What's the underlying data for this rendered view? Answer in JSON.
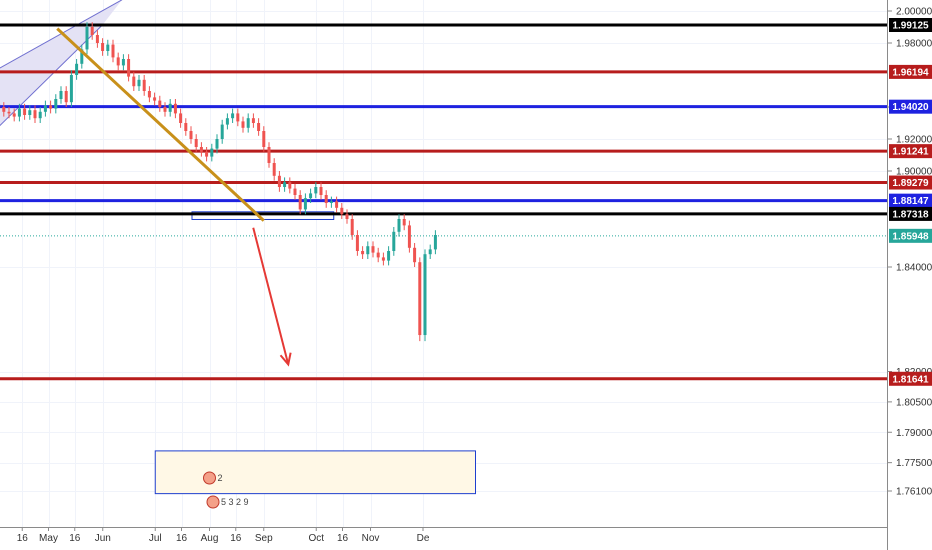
{
  "chart_data": {
    "type": "candlestick",
    "y_axis": {
      "range": [
        1.7515,
        2.0055
      ],
      "ticks": [
        "2.00000",
        "1.98000",
        "1.94000",
        "1.92000",
        "1.90000",
        "1.84000",
        "1.82000",
        "1.80500",
        "1.79000",
        "1.77500",
        "1.76100"
      ]
    },
    "x_axis": {
      "ticks": [
        "16",
        "May",
        "16",
        "Jun",
        "Jul",
        "16",
        "Aug",
        "16",
        "Sep",
        "Oct",
        "16",
        "Nov",
        "De"
      ]
    },
    "levels": [
      {
        "value": 1.99125,
        "label": "1.99125",
        "color": "#000000"
      },
      {
        "value": 1.96194,
        "label": "1.96194",
        "color": "#b71c1c"
      },
      {
        "value": 1.9402,
        "label": "1.94020",
        "color": "#1e22e0"
      },
      {
        "value": 1.91241,
        "label": "1.91241",
        "color": "#b71c1c"
      },
      {
        "value": 1.89279,
        "label": "1.89279",
        "color": "#b71c1c"
      },
      {
        "value": 1.88147,
        "label": "1.88147",
        "color": "#1e22e0"
      },
      {
        "value": 1.87318,
        "label": "1.87318",
        "color": "#000000"
      },
      {
        "value": 1.81641,
        "label": "1.81641",
        "color": "#b71c1c"
      }
    ],
    "current_price": {
      "value": 1.85948,
      "label": "1.85948",
      "color": "#26a69a"
    },
    "trendline": {
      "from": [
        "2019-05-06",
        1.989
      ],
      "to": [
        "2019-09-01",
        1.869
      ],
      "color": "#c8901a"
    },
    "arrow": {
      "from": [
        "2019-08-26",
        1.8645
      ],
      "to": [
        "2019-09-15",
        1.8235
      ],
      "color": "#e53935"
    },
    "zones": [
      {
        "x": [
          "2019-07-22",
          "2019-10-11"
        ],
        "y": [
          1.8745,
          1.8697
        ],
        "fill": "#ffffff",
        "stroke": "#1e3fcf"
      },
      {
        "x": [
          "2019-07-01",
          "2019-12-31"
        ],
        "y": [
          1.7808,
          1.7597
        ],
        "fill": "#fff8e6",
        "stroke": "#1e3fcf"
      }
    ],
    "channel": {
      "lower": [
        [
          "2019-04-01",
          1.926
        ],
        [
          "2019-06-01",
          1.9915
        ]
      ],
      "upper": [
        [
          "2019-04-01",
          1.963
        ],
        [
          "2019-06-12",
          2.007
        ]
      ],
      "fill": "#e4e2f5",
      "stroke": "#7070d0"
    },
    "events": [
      {
        "date": "2019-08-01",
        "label": "2"
      },
      {
        "date": "2019-08-03",
        "label": "5 3 2 9"
      }
    ],
    "colors": {
      "up": "#26a69a",
      "down": "#ef5350"
    }
  }
}
